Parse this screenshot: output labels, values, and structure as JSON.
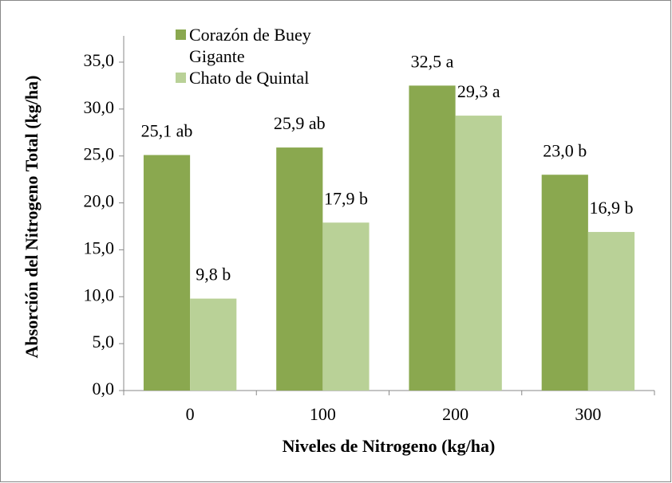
{
  "chart_data": {
    "type": "bar",
    "categories": [
      "0",
      "100",
      "200",
      "300"
    ],
    "series": [
      {
        "name": "Corazón de Buey Gigante",
        "color": "#8aa84f",
        "values": [
          25.1,
          25.9,
          32.5,
          23.0
        ],
        "value_labels": [
          "25,1 ab",
          "25,9 ab",
          "32,5 a",
          "23,0 b"
        ]
      },
      {
        "name": "Chato de Quintal",
        "color": "#b9d197",
        "values": [
          9.8,
          17.9,
          29.3,
          16.9
        ],
        "value_labels": [
          "9,8 b",
          "17,9 b",
          "29,3 a",
          "16,9 b"
        ]
      }
    ],
    "x_label": "Niveles de Nitrogeno (kg/ha)",
    "y_label": "Absorción del Nitrogeno Total (kg/ha)",
    "ylim": [
      0,
      37.8
    ],
    "yticks": [
      {
        "value": 0,
        "label": "0,0"
      },
      {
        "value": 5,
        "label": "5,0"
      },
      {
        "value": 10,
        "label": "10,0"
      },
      {
        "value": 15,
        "label": "15,0"
      },
      {
        "value": 20,
        "label": "20,0"
      },
      {
        "value": 25,
        "label": "25,0"
      },
      {
        "value": 30,
        "label": "30,0"
      },
      {
        "value": 35,
        "label": "35,0"
      }
    ],
    "legend": "upper left"
  }
}
